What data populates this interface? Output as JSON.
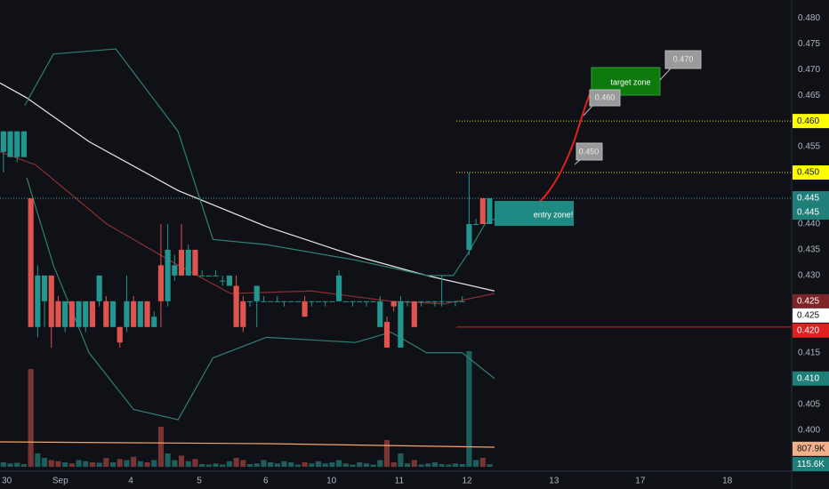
{
  "chart_data": {
    "type": "candlestick",
    "xlim": [
      -0.5,
      115.1
    ],
    "ylim": [
      0.392,
      0.4835
    ],
    "volume_ylim": [
      0,
      21000000
    ],
    "up_color": "#22968f",
    "down_color": "#e0534f",
    "up_volume_color": "#1d5f5c",
    "down_volume_color": "#7a3433",
    "x": [
      0,
      1,
      2,
      3,
      4,
      5,
      6,
      7,
      8,
      9,
      10,
      11,
      12,
      13,
      14,
      15,
      16,
      17,
      18,
      19,
      20,
      21,
      22,
      23,
      24,
      25,
      26,
      27,
      28,
      29,
      30,
      31,
      32,
      33,
      34,
      35,
      36,
      37,
      38,
      39,
      40,
      41,
      42,
      43,
      44,
      45,
      46,
      47,
      48,
      49,
      50,
      51,
      52,
      53,
      54,
      55,
      56,
      57,
      58,
      59,
      60,
      61,
      62,
      63,
      64,
      65,
      66,
      67,
      68,
      69,
      70,
      71
    ],
    "open": [
      0.454,
      0.453,
      0.453,
      0.453,
      0.445,
      0.42,
      0.425,
      0.43,
      0.425,
      0.42,
      0.425,
      0.42,
      0.42,
      0.425,
      0.425,
      0.425,
      0.42,
      0.42,
      0.42,
      0.425,
      0.42,
      0.425,
      0.42,
      0.432,
      0.425,
      0.43,
      0.435,
      0.43,
      0.435,
      0.43,
      0.43,
      0.43,
      0.429,
      0.428,
      0.428,
      0.425,
      0.425,
      0.425,
      0.425,
      0.425,
      0.425,
      0.425,
      0.425,
      0.425,
      0.425,
      0.425,
      0.425,
      0.425,
      0.425,
      0.425,
      0.425,
      0.425,
      0.425,
      0.425,
      0.425,
      0.42,
      0.421,
      0.425,
      0.416,
      0.425,
      0.425,
      0.425,
      0.425,
      0.425,
      0.425,
      0.425,
      0.425,
      0.425,
      0.435,
      0.44,
      0.445,
      0.44
    ],
    "high": [
      0.458,
      0.458,
      0.458,
      0.458,
      0.445,
      0.432,
      0.43,
      0.43,
      0.426,
      0.425,
      0.425,
      0.425,
      0.425,
      0.425,
      0.43,
      0.426,
      0.425,
      0.42,
      0.43,
      0.426,
      0.425,
      0.425,
      0.423,
      0.44,
      0.44,
      0.434,
      0.44,
      0.436,
      0.435,
      0.431,
      0.43,
      0.431,
      0.43,
      0.43,
      0.43,
      0.426,
      0.425,
      0.428,
      0.426,
      0.425,
      0.426,
      0.425,
      0.425,
      0.425,
      0.426,
      0.425,
      0.425,
      0.425,
      0.425,
      0.431,
      0.425,
      0.425,
      0.425,
      0.425,
      0.425,
      0.426,
      0.422,
      0.425,
      0.426,
      0.425,
      0.425,
      0.425,
      0.425,
      0.425,
      0.43,
      0.425,
      0.425,
      0.426,
      0.45,
      0.441,
      0.445,
      0.445
    ],
    "low": [
      0.45,
      0.453,
      0.452,
      0.453,
      0.42,
      0.418,
      0.42,
      0.416,
      0.42,
      0.419,
      0.42,
      0.42,
      0.419,
      0.42,
      0.424,
      0.42,
      0.42,
      0.416,
      0.419,
      0.42,
      0.42,
      0.42,
      0.42,
      0.42,
      0.424,
      0.429,
      0.43,
      0.43,
      0.43,
      0.43,
      0.43,
      0.43,
      0.428,
      0.428,
      0.42,
      0.419,
      0.424,
      0.42,
      0.425,
      0.425,
      0.425,
      0.424,
      0.425,
      0.425,
      0.422,
      0.424,
      0.425,
      0.424,
      0.425,
      0.425,
      0.425,
      0.424,
      0.425,
      0.424,
      0.425,
      0.42,
      0.416,
      0.423,
      0.416,
      0.424,
      0.42,
      0.424,
      0.425,
      0.424,
      0.424,
      0.425,
      0.424,
      0.425,
      0.434,
      0.44,
      0.44,
      0.44
    ],
    "close": [
      0.458,
      0.458,
      0.458,
      0.458,
      0.42,
      0.43,
      0.43,
      0.42,
      0.42,
      0.425,
      0.42,
      0.425,
      0.425,
      0.42,
      0.43,
      0.42,
      0.425,
      0.417,
      0.425,
      0.42,
      0.425,
      0.42,
      0.422,
      0.425,
      0.435,
      0.432,
      0.43,
      0.435,
      0.43,
      0.43,
      0.43,
      0.43,
      0.429,
      0.43,
      0.42,
      0.42,
      0.425,
      0.428,
      0.425,
      0.425,
      0.425,
      0.425,
      0.425,
      0.425,
      0.422,
      0.425,
      0.425,
      0.425,
      0.425,
      0.43,
      0.425,
      0.425,
      0.425,
      0.425,
      0.425,
      0.425,
      0.416,
      0.424,
      0.425,
      0.425,
      0.42,
      0.425,
      0.425,
      0.425,
      0.425,
      0.425,
      0.425,
      0.425,
      0.44,
      0.44,
      0.44,
      0.445
    ],
    "volume": [
      200000,
      150000,
      180000,
      120000,
      4400000,
      600000,
      400000,
      300000,
      250000,
      200000,
      150000,
      300000,
      250000,
      200000,
      180000,
      400000,
      200000,
      350000,
      300000,
      450000,
      250000,
      200000,
      300000,
      1800000,
      600000,
      300000,
      500000,
      250000,
      350000,
      120000,
      100000,
      150000,
      100000,
      250000,
      400000,
      300000,
      120000,
      150000,
      300000,
      200000,
      150000,
      250000,
      200000,
      100000,
      200000,
      150000,
      250000,
      150000,
      200000,
      300000,
      150000,
      100000,
      200000,
      150000,
      100000,
      300000,
      1200000,
      200000,
      600000,
      150000,
      300000,
      100000,
      150000,
      200000,
      120000,
      100000,
      150000,
      120000,
      5200000,
      300000,
      400000,
      115600
    ],
    "overlays": [
      {
        "color": "#e6e6e6",
        "x": [
          -0.5,
          3.4,
          12.5,
          25.5,
          38.4,
          51.4,
          61.8,
          71.7
        ],
        "values": [
          0.4674,
          0.4645,
          0.456,
          0.4465,
          0.4395,
          0.4338,
          0.43,
          0.427
        ]
      },
      {
        "color": "#2f7f71",
        "x": [
          3.1,
          7.3,
          16.4,
          25.5,
          30.6,
          38.4,
          51.4,
          61.8,
          65.7,
          67.7,
          70.3,
          71.7
        ],
        "values": [
          0.463,
          0.473,
          0.474,
          0.458,
          0.437,
          0.436,
          0.433,
          0.43,
          0.43,
          0.434,
          0.44,
          0.441
        ]
      },
      {
        "color": "#2f7f71",
        "x": [
          3.4,
          7.3,
          12.5,
          19,
          25.5,
          30.6,
          38.4,
          51.4,
          56.6,
          61.8,
          67,
          71.7
        ],
        "values": [
          0.449,
          0.432,
          0.415,
          0.404,
          0.402,
          0.414,
          0.418,
          0.417,
          0.419,
          0.415,
          0.415,
          0.41
        ]
      },
      {
        "color": "#8a2f33",
        "x": [
          -0.5,
          4.7,
          15.1,
          25.5,
          33.2,
          44.9,
          56.6,
          64.4,
          71.7
        ],
        "values": [
          0.454,
          0.4515,
          0.44,
          0.432,
          0.4265,
          0.427,
          0.425,
          0.4245,
          0.4265
        ]
      }
    ],
    "volume_ma": {
      "color": "#f0a46e",
      "x": [
        -0.5,
        38.4,
        71.7
      ],
      "values": [
        1120000,
        1040000,
        880000
      ]
    },
    "levels": [
      {
        "value": 0.445,
        "color": "#2ba39a",
        "full": true
      },
      {
        "value": 0.46,
        "color": "#e6e600",
        "full": false
      },
      {
        "value": 0.45,
        "color": "#e6e600",
        "full": false
      },
      {
        "value": 0.42,
        "color": "#e0201f",
        "full": false,
        "solid": true
      }
    ],
    "yticks": [
      {
        "value": 0.48,
        "label": "0.480"
      },
      {
        "value": 0.475,
        "label": "0.475"
      },
      {
        "value": 0.47,
        "label": "0.470"
      },
      {
        "value": 0.465,
        "label": "0.465"
      },
      {
        "value": 0.455,
        "label": "0.455"
      },
      {
        "value": 0.44,
        "label": "0.440"
      },
      {
        "value": 0.435,
        "label": "0.435"
      },
      {
        "value": 0.43,
        "label": "0.430"
      },
      {
        "value": 0.415,
        "label": "0.415"
      },
      {
        "value": 0.41,
        "label": "0.410"
      },
      {
        "value": 0.405,
        "label": "0.405"
      },
      {
        "value": 0.4,
        "label": "0.400"
      }
    ],
    "price_badges": [
      {
        "value": 0.46,
        "label": "0.460",
        "color": "#ffff00",
        "text_color": "#111111"
      },
      {
        "value": 0.45,
        "label": "0.450",
        "color": "#ffff00",
        "text_color": "#111111"
      },
      {
        "value": 0.445,
        "label": "0.445",
        "color": "#1f7f79",
        "text_color": "#ffffff"
      },
      {
        "value": 0.445,
        "label": "0.445",
        "color": "#1f7f79",
        "text_color": "#ffffff"
      },
      {
        "value": 0.425,
        "label": "0.425",
        "color": "#7d2528",
        "text_color": "#ffffff"
      },
      {
        "value": 0.425,
        "label": "0.425",
        "color": "#ffffff",
        "text_color": "#111111"
      },
      {
        "value": 0.42,
        "label": "0.420",
        "color": "#e0201f",
        "text_color": "#ffffff"
      },
      {
        "value": 0.41,
        "label": "0.410",
        "color": "#1f7f79",
        "text_color": "#ffffff"
      }
    ],
    "volume_badges": [
      {
        "value": 807900,
        "label": "807.9K",
        "color": "#f4b08a",
        "text_color": "#111111"
      },
      {
        "value": 115600,
        "label": "115.6K",
        "color": "#1f7f79",
        "text_color": "#ffffff"
      }
    ],
    "xticks": [
      {
        "value": 0.5,
        "label": "30"
      },
      {
        "value": 8.3,
        "label": "Sep"
      },
      {
        "value": 18.6,
        "label": "4"
      },
      {
        "value": 28.6,
        "label": "5"
      },
      {
        "value": 38.3,
        "label": "6"
      },
      {
        "value": 47.9,
        "label": "10"
      },
      {
        "value": 57.8,
        "label": "11"
      },
      {
        "value": 67.7,
        "label": "12"
      },
      {
        "value": 80.4,
        "label": "13"
      },
      {
        "value": 93,
        "label": "17"
      },
      {
        "value": 105.7,
        "label": "18"
      }
    ],
    "annotations": {
      "entry": "entry zone!",
      "target": "target zone",
      "callout_1": "0.450",
      "callout_2": "0.460",
      "callout_3": "0.470"
    }
  }
}
